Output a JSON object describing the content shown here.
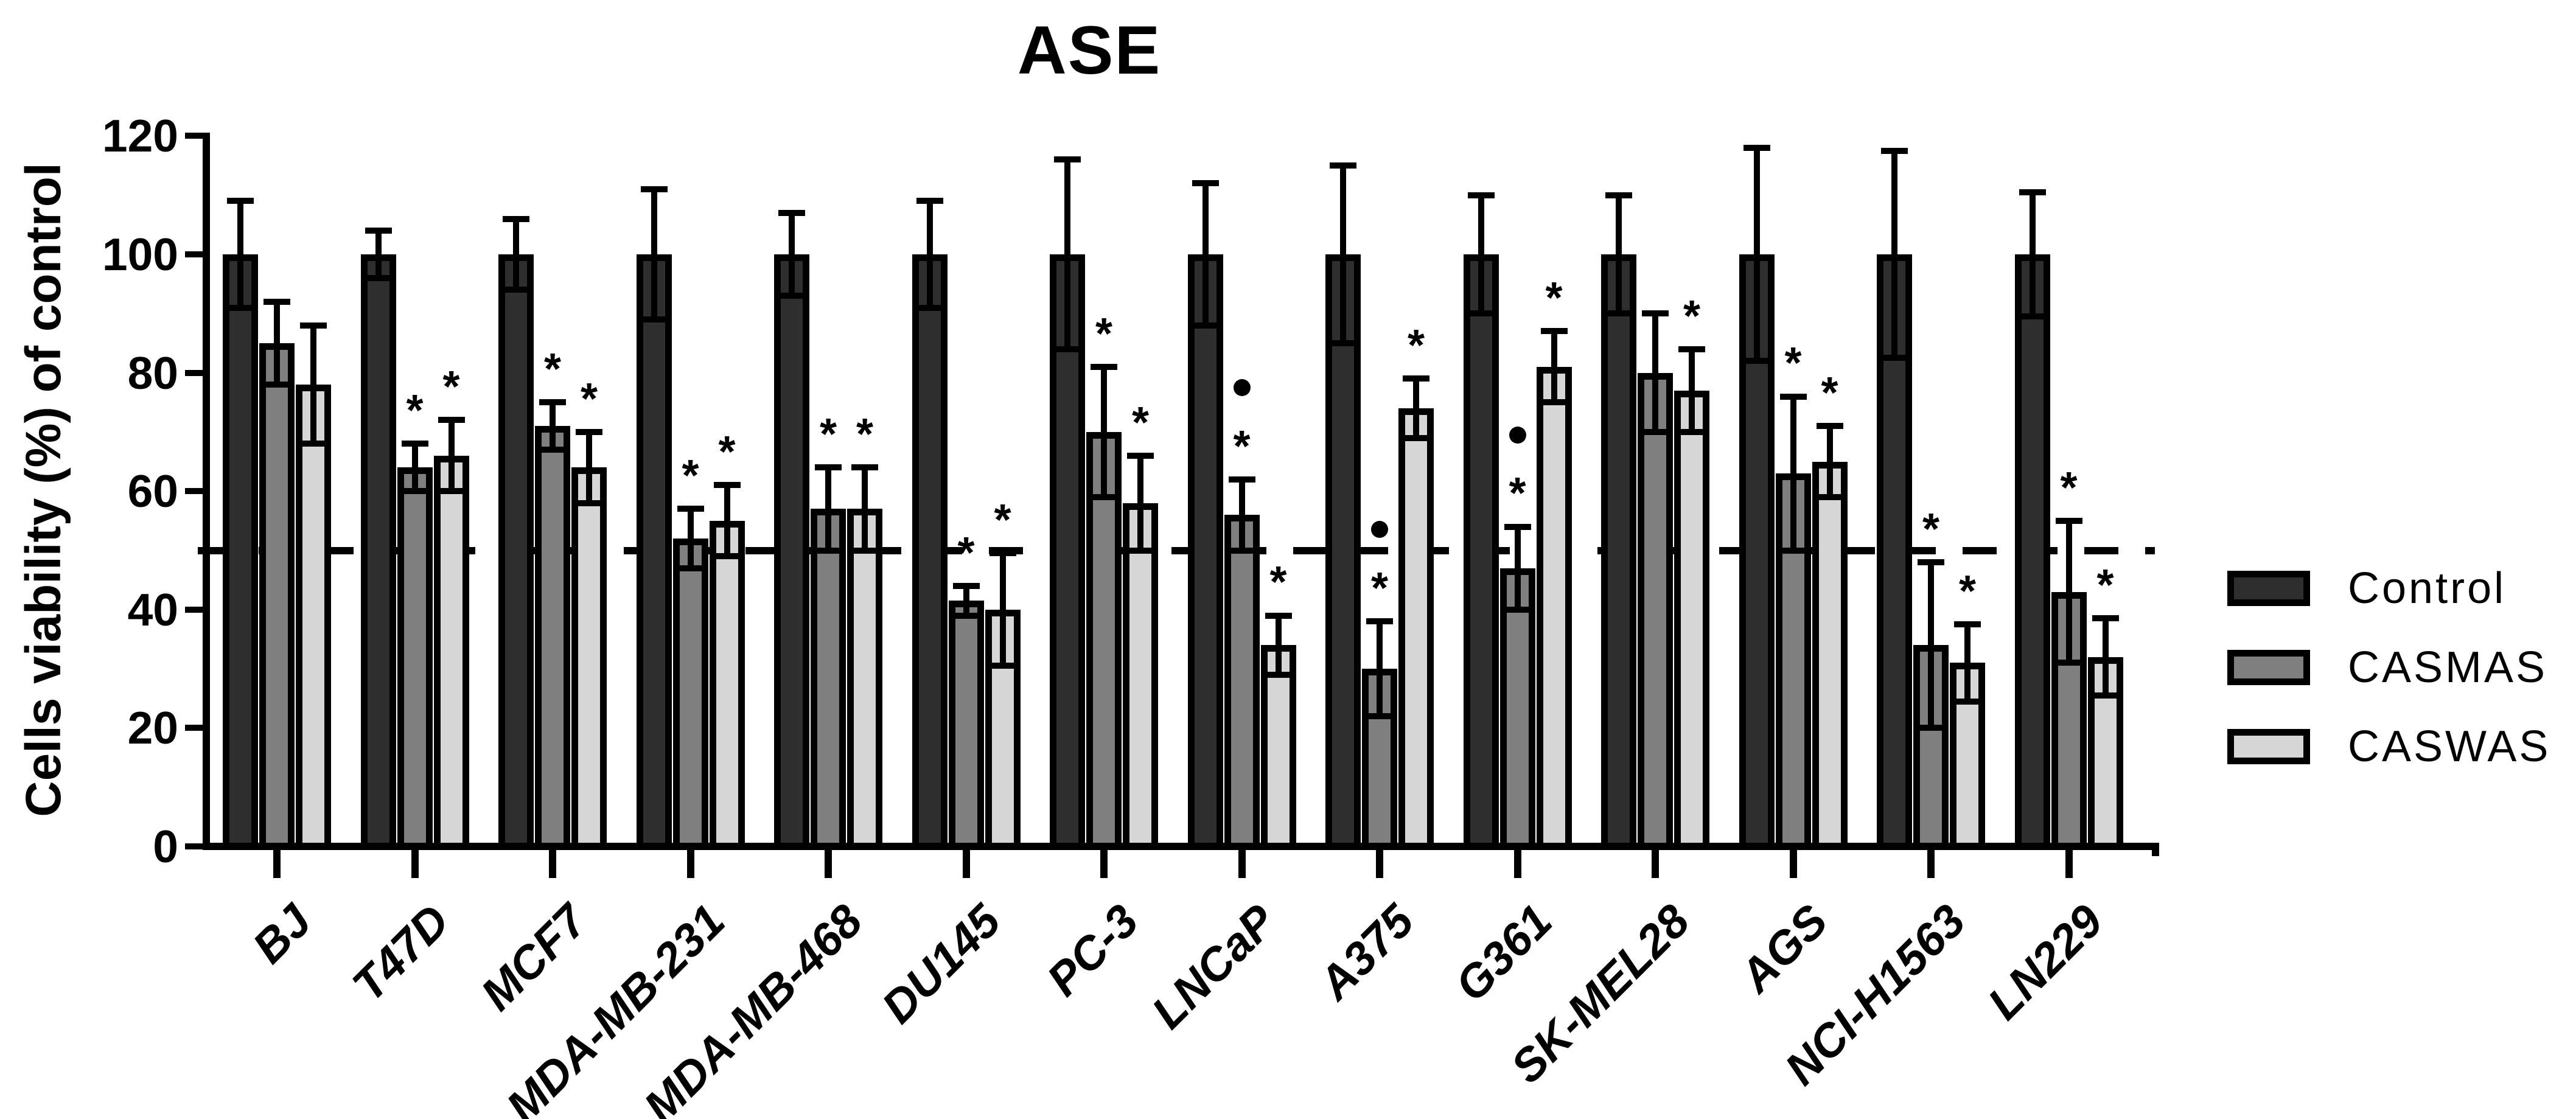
{
  "title": "ASE",
  "y_axis_label": "Cells viability (%) of control",
  "chart_data": {
    "type": "bar",
    "title": "ASE",
    "xlabel": "",
    "ylabel": "Cells viability (%) of control",
    "ylim": [
      0,
      120
    ],
    "y_ticks": [
      0,
      20,
      40,
      60,
      80,
      100,
      120
    ],
    "grid": "off",
    "reference_line_y": 50,
    "reference_line_style": "dashed",
    "legend_position": "right-center",
    "annotation_glyphs": [
      "*",
      "•"
    ],
    "categories": [
      "BJ",
      "T47D",
      "MCF7",
      "MDA-MB-231",
      "MDA-MB-468",
      "DU145",
      "PC-3",
      "LNCaP",
      "A375",
      "G361",
      "SK-MEL28",
      "AGS",
      "NCI-H1563",
      "LN229"
    ],
    "series": [
      {
        "name": "Control",
        "color": "#2e2e2e",
        "values": [
          100,
          100,
          100,
          100,
          100,
          100,
          100,
          100,
          100,
          100,
          100,
          100,
          100,
          100
        ],
        "errors": [
          9,
          4,
          6,
          11,
          7,
          9,
          16,
          12,
          15,
          10,
          10,
          18,
          17.5,
          10.5
        ],
        "annotations": [
          [],
          [],
          [],
          [],
          [],
          [],
          [],
          [],
          [],
          [],
          [],
          [],
          [],
          []
        ]
      },
      {
        "name": "CASMAS",
        "color": "#7f7f7f",
        "values": [
          85,
          64,
          71,
          52,
          57,
          41.5,
          70,
          56,
          30,
          47,
          80,
          63,
          34,
          43
        ],
        "errors": [
          7,
          4,
          4,
          5,
          7,
          2.5,
          11,
          6,
          8,
          7,
          10,
          13,
          14,
          12
        ],
        "annotations": [
          [],
          [
            "*"
          ],
          [
            "*"
          ],
          [
            "*"
          ],
          [
            "*"
          ],
          [
            "*"
          ],
          [
            "*"
          ],
          [
            "*",
            "•"
          ],
          [
            "*",
            "•"
          ],
          [
            "*",
            "•"
          ],
          [],
          [
            "*"
          ],
          [
            "*"
          ],
          [
            "*"
          ]
        ]
      },
      {
        "name": "CASWAS",
        "color": "#d6d6d6",
        "values": [
          78,
          66,
          64,
          55,
          57,
          40,
          58,
          34,
          74,
          81,
          77,
          65,
          31,
          32
        ],
        "errors": [
          10,
          6,
          6,
          6,
          7,
          9.5,
          8,
          5,
          5,
          6,
          7,
          6,
          6.5,
          6.5
        ],
        "annotations": [
          [],
          [
            "*"
          ],
          [
            "*"
          ],
          [
            "*"
          ],
          [
            "*"
          ],
          [
            "*"
          ],
          [
            "*"
          ],
          [
            "*"
          ],
          [
            "*"
          ],
          [
            "*"
          ],
          [
            "*"
          ],
          [
            "*"
          ],
          [
            "*"
          ],
          [
            "*"
          ]
        ]
      }
    ]
  }
}
